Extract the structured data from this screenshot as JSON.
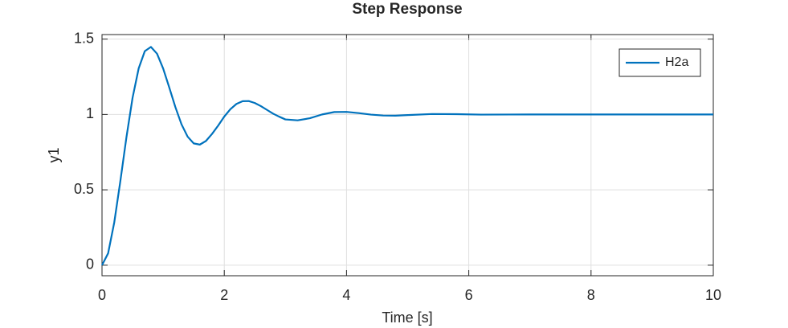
{
  "chart_data": {
    "type": "line",
    "title": "Step Response",
    "x_label": "Time [s]",
    "y_label": "y1",
    "x": [
      0,
      0.1,
      0.2,
      0.3,
      0.4,
      0.5,
      0.6,
      0.7,
      0.8,
      0.9,
      1.0,
      1.1,
      1.2,
      1.3,
      1.4,
      1.5,
      1.6,
      1.7,
      1.8,
      1.9,
      2.0,
      2.1,
      2.2,
      2.3,
      2.4,
      2.5,
      2.6,
      2.7,
      2.8,
      2.9,
      3.0,
      3.2,
      3.4,
      3.6,
      3.8,
      4.0,
      4.2,
      4.4,
      4.6,
      4.8,
      5.0,
      5.4,
      5.8,
      6.2,
      7,
      8,
      9,
      10
    ],
    "series": [
      {
        "name": "H2a",
        "color": "#0072BD",
        "values": [
          0,
          0.079,
          0.283,
          0.558,
          0.85,
          1.111,
          1.306,
          1.42,
          1.448,
          1.403,
          1.305,
          1.179,
          1.049,
          0.935,
          0.853,
          0.808,
          0.8,
          0.824,
          0.871,
          0.926,
          0.986,
          1.035,
          1.07,
          1.088,
          1.089,
          1.076,
          1.055,
          1.03,
          1.005,
          0.985,
          0.967,
          0.961,
          0.975,
          1.0,
          1.016,
          1.017,
          1.009,
          0.999,
          0.993,
          0.992,
          0.996,
          1.003,
          1.002,
          0.999,
          1,
          1,
          1,
          1
        ]
      }
    ],
    "xlim": [
      0,
      10
    ],
    "xticks": [
      0,
      2,
      4,
      6,
      8,
      10
    ],
    "ylim": [
      -0.07,
      1.53
    ],
    "yticks": [
      0,
      0.5,
      1,
      1.5
    ],
    "grid": true,
    "legend": "northeast"
  }
}
